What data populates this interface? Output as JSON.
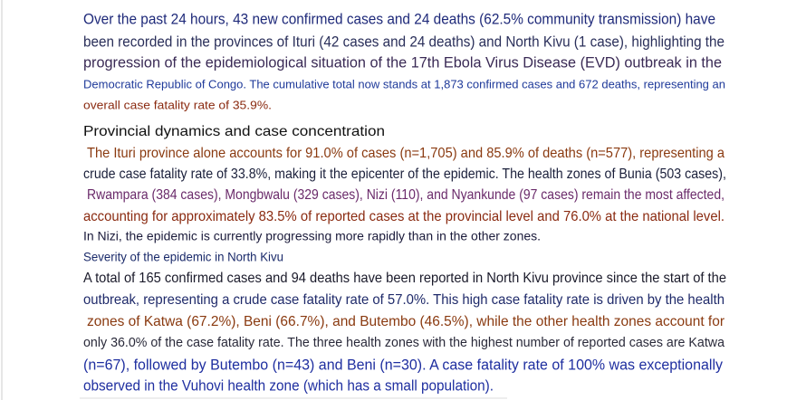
{
  "summary": {
    "lines": [
      "Over the past 24 hours, 43 new confirmed cases and 24 deaths (62.5% community transmission) have",
      "been recorded in the provinces of Ituri (42 cases and 24 deaths) and North Kivu (1 case), highlighting the",
      "progression of the epidemiological situation of the 17th Ebola Virus Disease (EVD) outbreak in the",
      "Democratic Republic of Congo. The cumulative total now stands at 1,873 confirmed cases and 672 deaths, representing an",
      "overall case fatality rate of 35.9%."
    ]
  },
  "provincial": {
    "heading": "Provincial dynamics and case concentration",
    "lines": [
      "The Ituri province alone accounts for 91.0% of cases (n=1,705) and 85.9% of deaths (n=577), representing a",
      "crude case fatality rate of 33.8%, making it the epicenter of the epidemic. The health zones of Bunia (503 cases),",
      "Rwampara (384 cases), Mongbwalu (329 cases), Nizi (110), and Nyankunde (97 cases) remain the most affected,",
      "accounting for approximately 83.5% of reported cases at the provincial level and 76.0% at the national level.",
      "In Nizi, the epidemic is currently progressing more rapidly than in the other zones."
    ]
  },
  "north_kivu": {
    "heading": "Severity of the epidemic in North Kivu",
    "lines": [
      "A total of 165 confirmed cases and 94 deaths have been reported in North Kivu province since the start of the",
      "outbreak, representing a crude case fatality rate of 57.0%. This high case fatality rate is driven by the health",
      "zones of Katwa (67.2%), Beni (66.7%), and Butembo (46.5%), while the other health zones account for",
      "only 36.0% of the case fatality rate. The three health zones with the highest number of reported cases are Katwa",
      "(n=67), followed by Butembo (n=43) and Beni (n=30). A case fatality rate of 100% was exceptionally",
      "observed in the Vuhovi health zone (which has a small population)."
    ]
  }
}
